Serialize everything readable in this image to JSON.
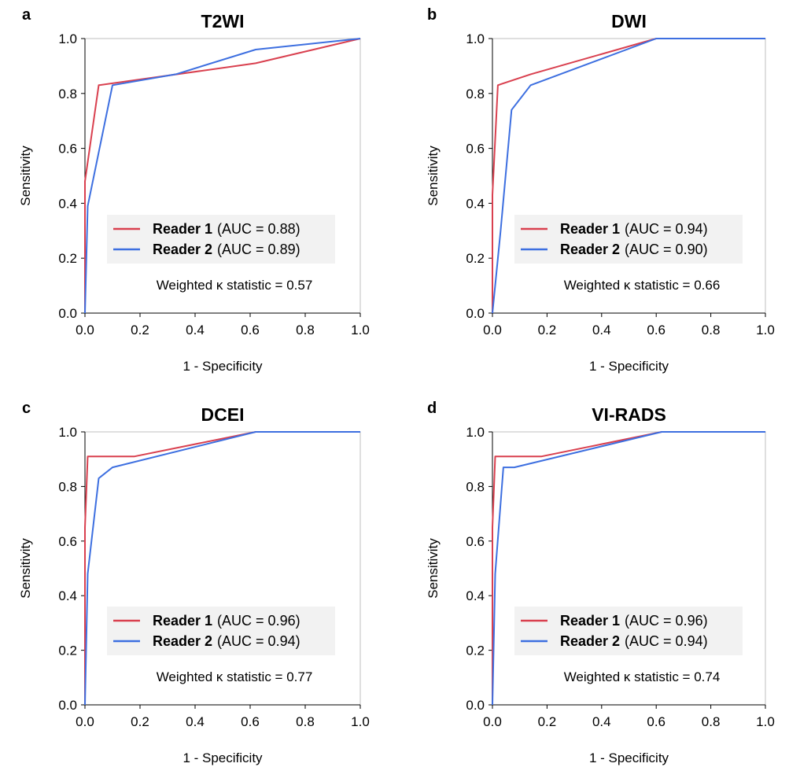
{
  "colors": {
    "reader1": "#d9404f",
    "reader2": "#3d6fe0",
    "frame": "#bfbfbf",
    "legend_bg": "#f2f2f2"
  },
  "chart_data": [
    {
      "type": "line",
      "panel": "a",
      "title": "T2WI",
      "xlabel": "1 - Specificity",
      "ylabel": "Sensitivity",
      "xlim": [
        0,
        1
      ],
      "ylim": [
        0,
        1
      ],
      "xticks": [
        "0.0",
        "0.2",
        "0.4",
        "0.6",
        "0.8",
        "1.0"
      ],
      "yticks": [
        "0.0",
        "0.2",
        "0.4",
        "0.6",
        "0.8",
        "1.0"
      ],
      "grid": false,
      "legend_placement": "lower-right",
      "series": [
        {
          "name": "Reader 1",
          "auc_text": "(AUC  = 0.88)",
          "x": [
            0,
            0,
            0.05,
            0.62,
            1.0
          ],
          "y": [
            0,
            0.48,
            0.83,
            0.91,
            1.0
          ]
        },
        {
          "name": "Reader 2",
          "auc_text": "(AUC  = 0.89)",
          "x": [
            0,
            0.01,
            0.1,
            0.33,
            0.62,
            1.0
          ],
          "y": [
            0,
            0.39,
            0.83,
            0.87,
            0.96,
            1.0
          ]
        }
      ],
      "annotation": "Weighted κ statistic = 0.57"
    },
    {
      "type": "line",
      "panel": "b",
      "title": "DWI",
      "xlabel": "1 - Specificity",
      "ylabel": "Sensitivity",
      "xlim": [
        0,
        1
      ],
      "ylim": [
        0,
        1
      ],
      "xticks": [
        "0.0",
        "0.2",
        "0.4",
        "0.6",
        "0.8",
        "1.0"
      ],
      "yticks": [
        "0.0",
        "0.2",
        "0.4",
        "0.6",
        "0.8",
        "1.0"
      ],
      "grid": false,
      "legend_placement": "lower-right",
      "series": [
        {
          "name": "Reader 1",
          "auc_text": "(AUC  = 0.94)",
          "x": [
            0,
            0,
            0.02,
            0.14,
            0.6,
            1.0
          ],
          "y": [
            0,
            0.43,
            0.83,
            0.87,
            1.0,
            1.0
          ]
        },
        {
          "name": "Reader 2",
          "auc_text": "(AUC  = 0.90)",
          "x": [
            0,
            0.03,
            0.07,
            0.14,
            0.6,
            1.0
          ],
          "y": [
            0,
            0.3,
            0.74,
            0.83,
            1.0,
            1.0
          ]
        }
      ],
      "annotation": "Weighted κ statistic = 0.66"
    },
    {
      "type": "line",
      "panel": "c",
      "title": "DCEI",
      "xlabel": "1 - Specificity",
      "ylabel": "Sensitivity",
      "xlim": [
        0,
        1
      ],
      "ylim": [
        0,
        1
      ],
      "xticks": [
        "0.0",
        "0.2",
        "0.4",
        "0.6",
        "0.8",
        "1.0"
      ],
      "yticks": [
        "0.0",
        "0.2",
        "0.4",
        "0.6",
        "0.8",
        "1.0"
      ],
      "grid": false,
      "legend_placement": "lower-right",
      "series": [
        {
          "name": "Reader 1",
          "auc_text": "(AUC  = 0.96)",
          "x": [
            0,
            0,
            0.01,
            0.18,
            0.62,
            1.0
          ],
          "y": [
            0,
            0.65,
            0.91,
            0.91,
            1.0,
            1.0
          ]
        },
        {
          "name": "Reader 2",
          "auc_text": "(AUC  = 0.94)",
          "x": [
            0,
            0.01,
            0.05,
            0.1,
            0.62,
            1.0
          ],
          "y": [
            0,
            0.48,
            0.83,
            0.87,
            1.0,
            1.0
          ]
        }
      ],
      "annotation": "Weighted κ statistic = 0.77"
    },
    {
      "type": "line",
      "panel": "d",
      "title": "VI-RADS",
      "xlabel": "1 - Specificity",
      "ylabel": "Sensitivity",
      "xlim": [
        0,
        1
      ],
      "ylim": [
        0,
        1
      ],
      "xticks": [
        "0.0",
        "0.2",
        "0.4",
        "0.6",
        "0.8",
        "1.0"
      ],
      "yticks": [
        "0.0",
        "0.2",
        "0.4",
        "0.6",
        "0.8",
        "1.0"
      ],
      "grid": false,
      "legend_placement": "lower-right",
      "series": [
        {
          "name": "Reader 1",
          "auc_text": "(AUC  = 0.96)",
          "x": [
            0,
            0,
            0.01,
            0.18,
            0.62,
            1.0
          ],
          "y": [
            0,
            0.65,
            0.91,
            0.91,
            1.0,
            1.0
          ]
        },
        {
          "name": "Reader 2",
          "auc_text": "(AUC  = 0.94)",
          "x": [
            0,
            0.01,
            0.04,
            0.08,
            0.62,
            1.0
          ],
          "y": [
            0,
            0.48,
            0.87,
            0.87,
            1.0,
            1.0
          ]
        }
      ],
      "annotation": "Weighted κ statistic = 0.74"
    }
  ]
}
